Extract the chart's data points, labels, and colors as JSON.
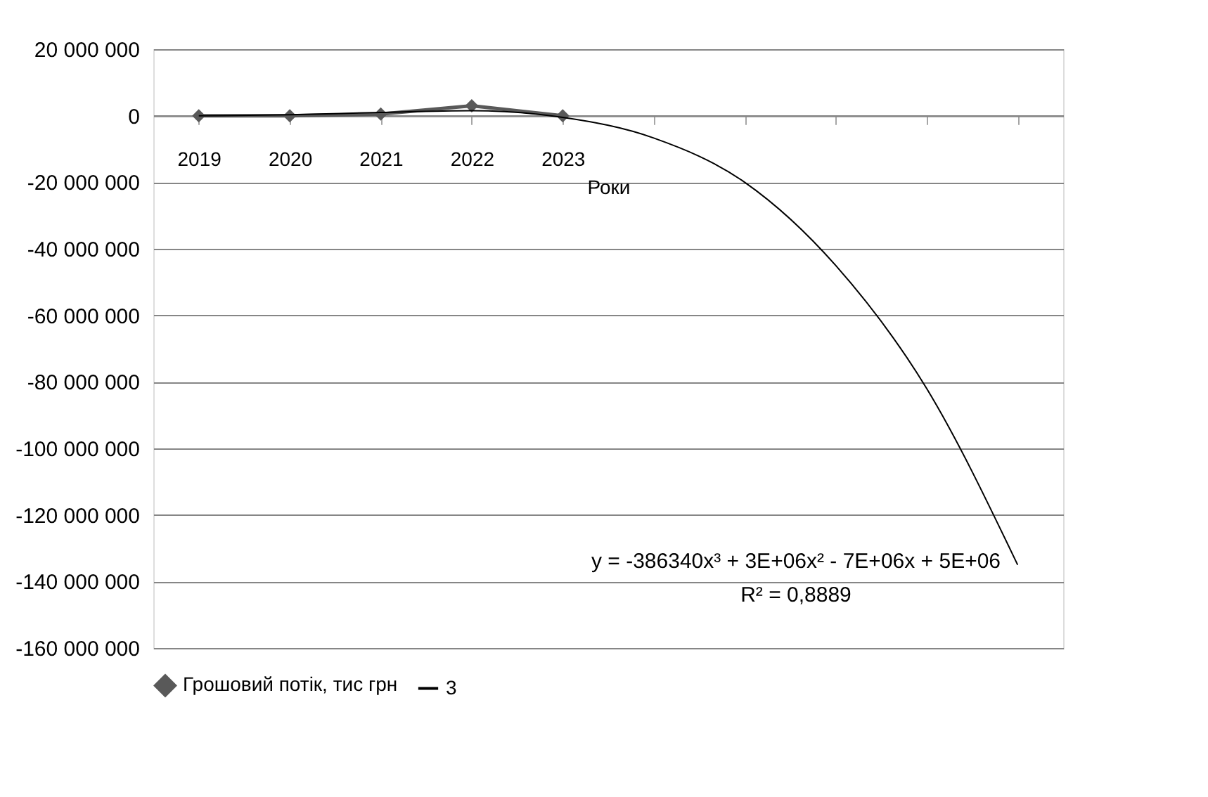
{
  "chart_data": {
    "type": "line",
    "xlabel": "Роки",
    "categories": [
      "2019",
      "2020",
      "2021",
      "2022",
      "2023",
      null,
      null,
      null,
      null,
      null
    ],
    "series": [
      {
        "name": "Грошовий потік, тис грн",
        "color": "#595959",
        "marker": "diamond",
        "values": [
          0,
          0,
          500000,
          3000000,
          0,
          null,
          null,
          null,
          null,
          null
        ]
      },
      {
        "name": "3",
        "color": "#000000",
        "marker": "none",
        "values": [
          0,
          300000,
          1000000,
          1500000,
          -500000,
          -6700000,
          -20000000,
          -45000000,
          -82000000,
          -135000000
        ]
      }
    ],
    "ylim": [
      -160000000,
      20000000
    ],
    "yticks": [
      {
        "value": 20000000,
        "label": "20 000 000"
      },
      {
        "value": 0,
        "label": "0"
      },
      {
        "value": -20000000,
        "label": "-20 000 000"
      },
      {
        "value": -40000000,
        "label": "-40 000 000"
      },
      {
        "value": -60000000,
        "label": "-60 000 000"
      },
      {
        "value": -80000000,
        "label": "-80 000 000"
      },
      {
        "value": -100000000,
        "label": "-100 000 000"
      },
      {
        "value": -120000000,
        "label": "-120 000 000"
      },
      {
        "value": -140000000,
        "label": "-140 000 000"
      },
      {
        "value": -160000000,
        "label": "-160 000 000"
      }
    ],
    "annotations": [
      "y = -386340x³ + 3E+06x² - 7E+06x + 5E+06",
      "R² = 0,8889"
    ],
    "grid": "y",
    "legend": "bottom",
    "line_style": "solid"
  }
}
